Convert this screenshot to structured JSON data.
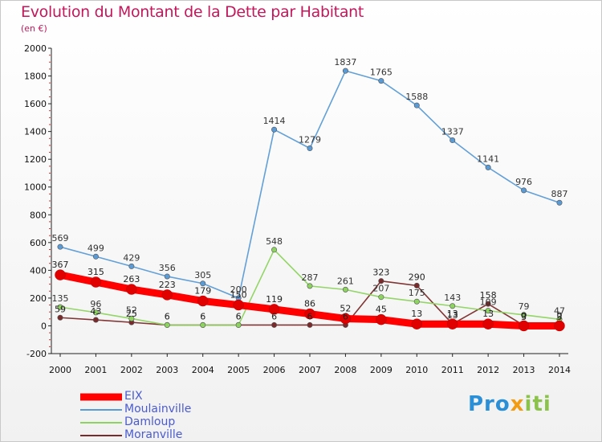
{
  "header": {
    "title": "Evolution du Montant de la Dette par Habitant",
    "unit": "(en €)"
  },
  "logo": {
    "p1": "Pro",
    "p2": "x",
    "p3": "iti"
  },
  "chart_data": {
    "type": "line",
    "title": "Evolution du Montant de la Dette par Habitant",
    "subtitle": "(en €)",
    "xlabel": "",
    "ylabel": "",
    "x": [
      "2000",
      "2001",
      "2002",
      "2003",
      "2004",
      "2005",
      "2006",
      "2007",
      "2008",
      "2009",
      "2010",
      "2011",
      "2012",
      "2013",
      "2014"
    ],
    "ylim": [
      -200,
      2000
    ],
    "yticks": [
      "-200",
      "0",
      "200",
      "400",
      "600",
      "800",
      "1000",
      "1200",
      "1400",
      "1600",
      "1800",
      "2000"
    ],
    "grid": false,
    "legend_position": "bottom-left",
    "series": [
      {
        "name": "Moranville",
        "color": "#7a2a2a",
        "values": [
          59,
          43,
          25,
          6,
          6,
          6,
          6,
          6,
          6,
          323,
          290,
          13,
          158,
          3,
          3
        ]
      },
      {
        "name": "Damloup",
        "color": "#8dd35f",
        "values": [
          135,
          96,
          52,
          6,
          6,
          6,
          548,
          287,
          261,
          207,
          175,
          143,
          109,
          79,
          47
        ]
      },
      {
        "name": "Moulainville",
        "color": "#5a9bd5",
        "values": [
          569,
          499,
          429,
          356,
          305,
          200,
          1414,
          1279,
          1837,
          1765,
          1588,
          1337,
          1141,
          976,
          887
        ]
      },
      {
        "name": "EIX",
        "color": "#ff0000",
        "values": [
          367,
          315,
          263,
          223,
          179,
          150,
          119,
          86,
          52,
          45,
          13,
          13,
          13,
          0,
          0
        ]
      }
    ]
  },
  "legend": [
    {
      "label": "EIX",
      "color": "#ff0000",
      "thickness": 9
    },
    {
      "label": "Moulainville",
      "color": "#5a9bd5",
      "thickness": 2
    },
    {
      "label": "Damloup",
      "color": "#8dd35f",
      "thickness": 2
    },
    {
      "label": "Moranville",
      "color": "#7a2a2a",
      "thickness": 2
    }
  ]
}
